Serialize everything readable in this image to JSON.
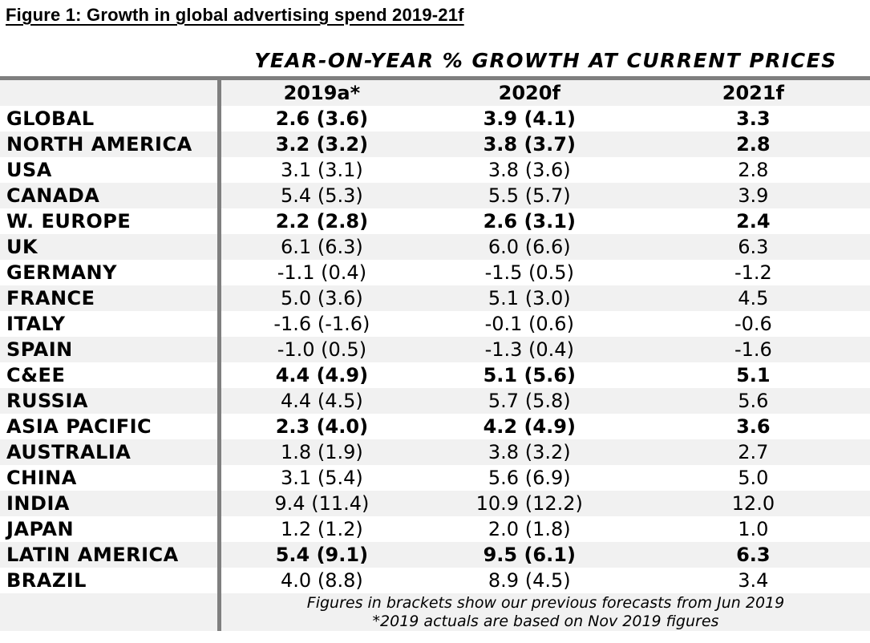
{
  "figure": {
    "title": "Figure 1: Growth in global advertising spend 2019-21f",
    "subtitle": "YEAR-ON-YEAR % GROWTH AT CURRENT PRICES"
  },
  "table": {
    "columns": [
      "2019a*",
      "2020f",
      "2021f"
    ],
    "rows": [
      {
        "label": "GLOBAL",
        "y2019": "2.6 (3.6)",
        "y2020": "3.9 (4.1)",
        "y2021": "3.3",
        "bold": true
      },
      {
        "label": "NORTH AMERICA",
        "y2019": "3.2 (3.2)",
        "y2020": "3.8 (3.7)",
        "y2021": "2.8",
        "bold": true
      },
      {
        "label": "USA",
        "y2019": "3.1 (3.1)",
        "y2020": "3.8 (3.6)",
        "y2021": "2.8",
        "bold": false
      },
      {
        "label": "CANADA",
        "y2019": "5.4 (5.3)",
        "y2020": "5.5 (5.7)",
        "y2021": "3.9",
        "bold": false
      },
      {
        "label": "W. EUROPE",
        "y2019": "2.2 (2.8)",
        "y2020": "2.6 (3.1)",
        "y2021": "2.4",
        "bold": true
      },
      {
        "label": "UK",
        "y2019": "6.1 (6.3)",
        "y2020": "6.0 (6.6)",
        "y2021": "6.3",
        "bold": false
      },
      {
        "label": "GERMANY",
        "y2019": "-1.1 (0.4)",
        "y2020": "-1.5 (0.5)",
        "y2021": "-1.2",
        "bold": false
      },
      {
        "label": "FRANCE",
        "y2019": "5.0 (3.6)",
        "y2020": "5.1 (3.0)",
        "y2021": "4.5",
        "bold": false
      },
      {
        "label": "ITALY",
        "y2019": "-1.6 (-1.6)",
        "y2020": "-0.1 (0.6)",
        "y2021": "-0.6",
        "bold": false
      },
      {
        "label": "SPAIN",
        "y2019": "-1.0 (0.5)",
        "y2020": "-1.3 (0.4)",
        "y2021": "-1.6",
        "bold": false
      },
      {
        "label": "C&EE",
        "y2019": "4.4 (4.9)",
        "y2020": "5.1 (5.6)",
        "y2021": "5.1",
        "bold": true
      },
      {
        "label": "RUSSIA",
        "y2019": "4.4 (4.5)",
        "y2020": "5.7 (5.8)",
        "y2021": "5.6",
        "bold": false
      },
      {
        "label": "ASIA PACIFIC",
        "y2019": "2.3 (4.0)",
        "y2020": "4.2 (4.9)",
        "y2021": "3.6",
        "bold": true
      },
      {
        "label": "AUSTRALIA",
        "y2019": "1.8 (1.9)",
        "y2020": "3.8 (3.2)",
        "y2021": "2.7",
        "bold": false
      },
      {
        "label": "CHINA",
        "y2019": "3.1 (5.4)",
        "y2020": "5.6 (6.9)",
        "y2021": "5.0",
        "bold": false
      },
      {
        "label": "INDIA",
        "y2019": "9.4 (11.4)",
        "y2020": "10.9 (12.2)",
        "y2021": "12.0",
        "bold": false
      },
      {
        "label": "JAPAN",
        "y2019": "1.2 (1.2)",
        "y2020": "2.0 (1.8)",
        "y2021": "1.0",
        "bold": false
      },
      {
        "label": "LATIN AMERICA",
        "y2019": "5.4 (9.1)",
        "y2020": "9.5 (6.1)",
        "y2021": "6.3",
        "bold": true
      },
      {
        "label": "BRAZIL",
        "y2019": "4.0 (8.8)",
        "y2020": "8.9 (4.5)",
        "y2021": "3.4",
        "bold": false
      }
    ],
    "footnotes": [
      "Figures in brackets show our previous forecasts from Jun 2019",
      "*2019 actuals are based on Nov 2019 figures"
    ]
  },
  "colors": {
    "stripe": "#f1f1f1",
    "divider": "#7f7f7f",
    "text": "#000000"
  }
}
